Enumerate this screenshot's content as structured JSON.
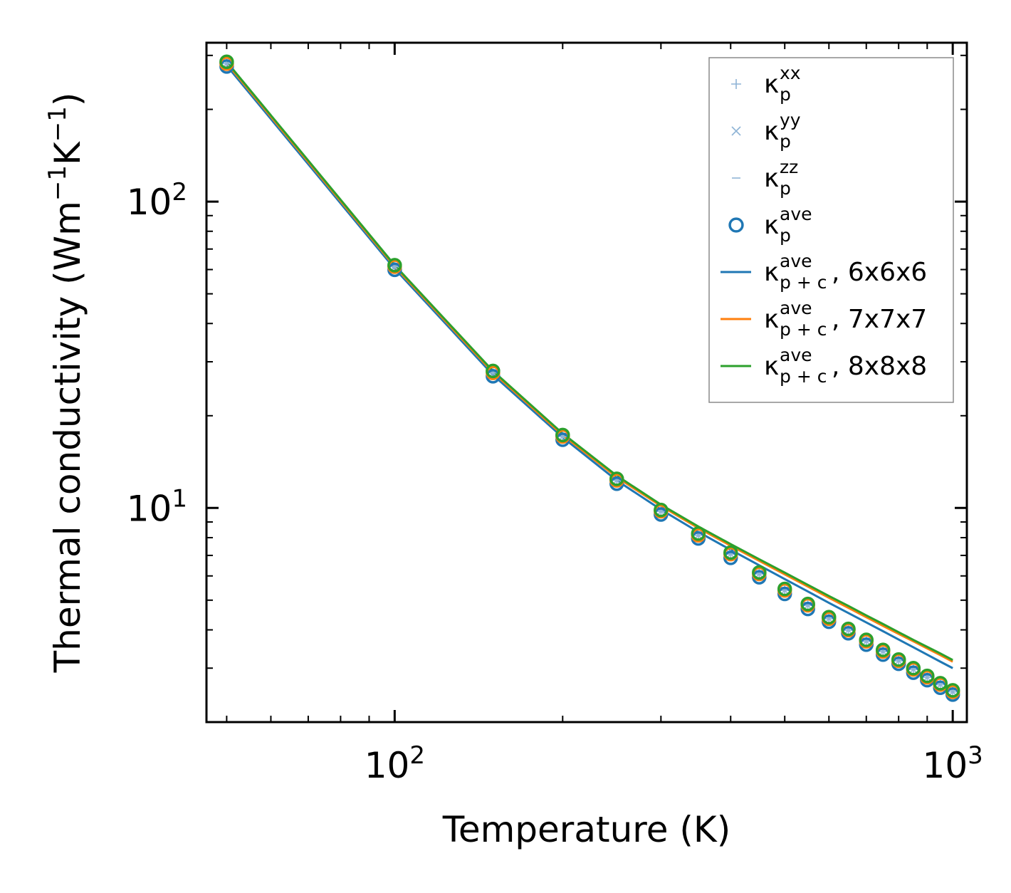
{
  "chart_data": {
    "type": "line",
    "xscale": "log",
    "yscale": "log",
    "xlabel": "Temperature (K)",
    "ylabel": {
      "prefix": "Thermal conductivity (Wm",
      "exp1": "−1",
      "mid": "K",
      "exp2": "−1",
      "suffix": ")"
    },
    "xlim": [
      46,
      1060
    ],
    "ylim": [
      2.0,
      330
    ],
    "x_major_ticks": [
      {
        "value": 100,
        "base": "10",
        "exp": "2"
      },
      {
        "value": 1000,
        "base": "10",
        "exp": "3"
      }
    ],
    "y_major_ticks": [
      {
        "value": 10,
        "base": "10",
        "exp": "1"
      },
      {
        "value": 100,
        "base": "10",
        "exp": "2"
      }
    ],
    "x_minor_ticks": [
      50,
      60,
      70,
      80,
      90,
      200,
      300,
      400,
      500,
      600,
      700,
      800,
      900
    ],
    "y_minor_ticks": [
      3,
      4,
      5,
      6,
      7,
      8,
      9,
      20,
      30,
      40,
      50,
      60,
      70,
      80,
      90,
      200,
      300
    ],
    "x": [
      50,
      100,
      150,
      200,
      250,
      300,
      350,
      400,
      450,
      500,
      550,
      600,
      650,
      700,
      750,
      800,
      850,
      900,
      950,
      1000
    ],
    "series": [
      {
        "name": "κp xx",
        "legend_base": "κ",
        "legend_sup": "xx",
        "legend_sub": "p",
        "legend_tail": "",
        "kind": "marker",
        "marker": "plus",
        "color": "#8fb4d6",
        "values": [
          282,
          61.3,
          27.6,
          17.1,
          12.3,
          9.75,
          8.14,
          7.07,
          6.09,
          5.38,
          4.81,
          4.35,
          3.99,
          3.67,
          3.4,
          3.17,
          2.97,
          2.8,
          2.65,
          2.51
        ]
      },
      {
        "name": "κp yy",
        "legend_base": "κ",
        "legend_sup": "yy",
        "legend_sub": "p",
        "legend_tail": "",
        "kind": "marker",
        "marker": "cross",
        "color": "#8fb4d6",
        "values": [
          282,
          61.3,
          27.6,
          17.1,
          12.3,
          9.75,
          8.14,
          7.07,
          6.09,
          5.38,
          4.81,
          4.35,
          3.99,
          3.67,
          3.4,
          3.17,
          2.97,
          2.8,
          2.65,
          2.51
        ]
      },
      {
        "name": "κp zz",
        "legend_base": "κ",
        "legend_sup": "zz",
        "legend_sub": "p",
        "legend_tail": "",
        "kind": "marker",
        "marker": "dash",
        "color": "#8fb4d6",
        "values": [
          282,
          61.3,
          27.6,
          17.1,
          12.3,
          9.75,
          8.14,
          7.07,
          6.09,
          5.38,
          4.81,
          4.35,
          3.99,
          3.67,
          3.4,
          3.17,
          2.97,
          2.8,
          2.65,
          2.51
        ]
      },
      {
        "name": "κp ave, 6x6x6",
        "legend_base": "κ",
        "legend_sup": "ave",
        "legend_sub": "p",
        "legend_tail": "",
        "kind": "marker",
        "marker": "circle",
        "color": "#1f77b4",
        "values": [
          276,
          59.9,
          26.9,
          16.7,
          12.0,
          9.52,
          7.95,
          6.87,
          5.94,
          5.24,
          4.68,
          4.25,
          3.9,
          3.58,
          3.32,
          3.1,
          2.9,
          2.74,
          2.59,
          2.46
        ]
      },
      {
        "name": "κp ave, 7x7x7",
        "kind": "marker-only",
        "marker": "circle",
        "color": "#ff7f0e",
        "values": [
          282,
          61.3,
          27.6,
          17.1,
          12.3,
          9.75,
          8.14,
          7.07,
          6.09,
          5.38,
          4.81,
          4.35,
          3.99,
          3.67,
          3.4,
          3.17,
          2.97,
          2.8,
          2.65,
          2.51
        ]
      },
      {
        "name": "κp ave, 8x8x8",
        "kind": "marker-only",
        "marker": "circle",
        "color": "#2ca02c",
        "values": [
          286,
          62.0,
          28.0,
          17.3,
          12.45,
          9.85,
          8.25,
          7.15,
          6.16,
          5.44,
          4.86,
          4.4,
          4.03,
          3.71,
          3.44,
          3.2,
          3.0,
          2.83,
          2.68,
          2.54
        ]
      },
      {
        "name": "κp+c ave, 6x6x6",
        "legend_base": "κ",
        "legend_sup": "ave",
        "legend_sub": "p + c",
        "legend_tail": ", 6x6x6",
        "kind": "line",
        "color": "#1f77b4",
        "values": [
          278,
          60.4,
          27.2,
          17.0,
          12.3,
          9.88,
          8.35,
          7.3,
          6.5,
          5.86,
          5.34,
          4.9,
          4.54,
          4.23,
          3.96,
          3.72,
          3.51,
          3.32,
          3.15,
          3.0
        ]
      },
      {
        "name": "κp+c ave, 7x7x7",
        "legend_base": "κ",
        "legend_sup": "ave",
        "legend_sub": "p + c",
        "legend_tail": ", 7x7x7",
        "kind": "line",
        "color": "#ff7f0e",
        "values": [
          283,
          61.4,
          27.7,
          17.3,
          12.6,
          10.15,
          8.6,
          7.53,
          6.72,
          6.07,
          5.54,
          5.09,
          4.72,
          4.4,
          4.12,
          3.88,
          3.67,
          3.48,
          3.31,
          3.15
        ]
      },
      {
        "name": "κp+c ave, 8x8x8",
        "legend_base": "κ",
        "legend_sup": "ave",
        "legend_sub": "p + c",
        "legend_tail": ", 8x8x8",
        "kind": "line",
        "color": "#2ca02c",
        "values": [
          286,
          62.0,
          28.0,
          17.5,
          12.75,
          10.25,
          8.7,
          7.62,
          6.8,
          6.15,
          5.61,
          5.16,
          4.79,
          4.46,
          4.18,
          3.93,
          3.71,
          3.52,
          3.35,
          3.19
        ]
      }
    ],
    "legend_order": [
      "κp xx",
      "κp yy",
      "κp zz",
      "κp ave, 6x6x6",
      "κp+c ave, 6x6x6",
      "κp+c ave, 7x7x7",
      "κp+c ave, 8x8x8"
    ],
    "legend_position": "top-right",
    "grid": false
  }
}
